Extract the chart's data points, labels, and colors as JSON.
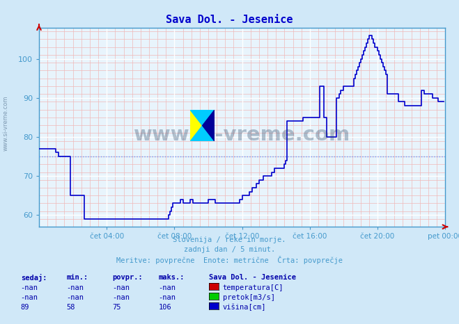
{
  "title": "Sava Dol. - Jesenice",
  "title_color": "#0000cc",
  "bg_color": "#d0e8f8",
  "plot_bg_color": "#e8f4fc",
  "grid_color_major": "#ffffff",
  "grid_color_minor": "#f0b8b8",
  "line_color": "#0000cc",
  "line_width": 1.2,
  "avg_line_color": "#6699ff",
  "avg_value": 75,
  "ylim": [
    57,
    108
  ],
  "yticks": [
    60,
    70,
    80,
    90,
    100
  ],
  "xlabel_color": "#4499cc",
  "xtick_labels": [
    "čet 04:00",
    "čet 08:00",
    "čet 12:00",
    "čet 16:00",
    "čet 20:00",
    "pet 00:00"
  ],
  "xtick_positions": [
    48,
    96,
    144,
    192,
    240,
    288
  ],
  "total_points": 288,
  "watermark_text": "www.si-vreme.com",
  "watermark_color": "#1a3a5c",
  "watermark_alpha": 0.3,
  "footer_lines": [
    "Slovenija / reke in morje.",
    "zadnji dan / 5 minut.",
    "Meritve: povprečne  Enote: metrične  Črta: povprečje"
  ],
  "table_headers": [
    "sedaj:",
    "min.:",
    "povpr.:",
    "maks.:"
  ],
  "table_rows": [
    [
      "-nan",
      "-nan",
      "-nan",
      "-nan",
      "temperatura[C]",
      "#cc0000"
    ],
    [
      "-nan",
      "-nan",
      "-nan",
      "-nan",
      "pretok[m3/s]",
      "#00cc00"
    ],
    [
      "89",
      "58",
      "75",
      "106",
      "višina[cm]",
      "#0000cc"
    ]
  ],
  "table_header_extra": "Sava Dol. - Jesenice",
  "spine_color": "#4499cc",
  "tick_color": "#4499cc",
  "height_data": [
    77,
    77,
    77,
    77,
    77,
    77,
    77,
    77,
    77,
    77,
    77,
    77,
    76,
    76,
    75,
    75,
    75,
    75,
    75,
    75,
    75,
    75,
    65,
    65,
    65,
    65,
    65,
    65,
    65,
    65,
    65,
    65,
    59,
    59,
    59,
    59,
    59,
    59,
    59,
    59,
    59,
    59,
    59,
    59,
    59,
    59,
    59,
    59,
    59,
    59,
    59,
    59,
    59,
    59,
    59,
    59,
    59,
    59,
    59,
    59,
    59,
    59,
    59,
    59,
    59,
    59,
    59,
    59,
    59,
    59,
    59,
    59,
    59,
    59,
    59,
    59,
    59,
    59,
    59,
    59,
    59,
    59,
    59,
    59,
    59,
    59,
    59,
    59,
    59,
    59,
    59,
    59,
    60,
    61,
    62,
    63,
    63,
    63,
    63,
    63,
    64,
    64,
    63,
    63,
    63,
    63,
    63,
    64,
    64,
    63,
    63,
    63,
    63,
    63,
    63,
    63,
    63,
    63,
    63,
    63,
    64,
    64,
    64,
    64,
    64,
    63,
    63,
    63,
    63,
    63,
    63,
    63,
    63,
    63,
    63,
    63,
    63,
    63,
    63,
    63,
    63,
    63,
    64,
    64,
    65,
    65,
    65,
    65,
    65,
    66,
    66,
    67,
    67,
    67,
    68,
    68,
    69,
    69,
    69,
    70,
    70,
    70,
    70,
    70,
    70,
    71,
    71,
    72,
    72,
    72,
    72,
    72,
    72,
    72,
    73,
    74,
    84,
    84,
    84,
    84,
    84,
    84,
    84,
    84,
    84,
    84,
    84,
    85,
    85,
    85,
    85,
    85,
    85,
    85,
    85,
    85,
    85,
    85,
    85,
    93,
    93,
    93,
    85,
    85,
    80,
    80,
    80,
    80,
    80,
    80,
    80,
    90,
    90,
    91,
    92,
    92,
    93,
    93,
    93,
    93,
    93,
    93,
    93,
    95,
    96,
    97,
    98,
    99,
    100,
    101,
    102,
    103,
    104,
    105,
    106,
    106,
    105,
    104,
    103,
    103,
    102,
    101,
    100,
    99,
    98,
    97,
    96,
    91,
    91,
    91,
    91,
    91,
    91,
    91,
    91,
    89,
    89,
    89,
    89,
    88,
    88,
    88,
    88,
    88,
    88,
    88,
    88,
    88,
    88,
    88,
    88,
    92,
    92,
    91,
    91,
    91,
    91,
    91,
    91,
    90,
    90,
    90,
    90,
    89,
    89,
    89,
    89
  ]
}
